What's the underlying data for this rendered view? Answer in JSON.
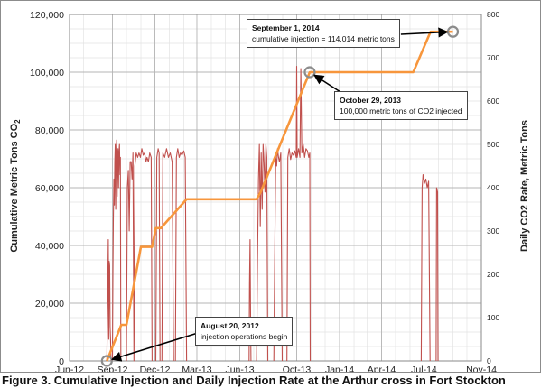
{
  "chart_data": {
    "type": "line",
    "title": "",
    "x_tick_labels": [
      "Jun-12",
      "Sep-12",
      "Dec-12",
      "Mar-13",
      "Jun-13",
      "Oct-13",
      "Jan-14",
      "Apr-14",
      "Jul-14",
      "Nov-14"
    ],
    "x_ticks": [
      "2012-06-01",
      "2012-09-01",
      "2012-12-01",
      "2013-03-01",
      "2013-06-01",
      "2013-10-01",
      "2014-01-01",
      "2014-04-01",
      "2014-07-01",
      "2014-11-01"
    ],
    "xlim": [
      "2012-06-01",
      "2014-11-01"
    ],
    "ylabel_left": "Cumulative Metric Tons CO",
    "ylabel_left_subscript": "2",
    "ylabel_right": "Daily CO2 Rate, Metric Tons",
    "ylim_left": [
      0,
      120000
    ],
    "ylim_right": [
      0,
      800
    ],
    "y_left_ticks": [
      "0",
      "20,000",
      "40,000",
      "60,000",
      "80,000",
      "100,000",
      "120,000"
    ],
    "y_right_ticks": [
      "0",
      "100",
      "200",
      "300",
      "400",
      "500",
      "600",
      "700",
      "800"
    ],
    "grid": true,
    "series": [
      {
        "axis": "left",
        "color": "#f7963c",
        "points": [
          [
            "2012-08-20",
            0
          ],
          [
            "2012-09-20",
            12500
          ],
          [
            "2012-10-01",
            12500
          ],
          [
            "2012-11-01",
            39500
          ],
          [
            "2012-11-25",
            39500
          ],
          [
            "2012-12-03",
            46000
          ],
          [
            "2012-12-14",
            46000
          ],
          [
            "2013-02-07",
            56000
          ],
          [
            "2013-07-07",
            56000
          ],
          [
            "2013-07-16",
            58500
          ],
          [
            "2013-10-29",
            100000
          ],
          [
            "2014-06-08",
            100000
          ],
          [
            "2014-07-15",
            114014
          ],
          [
            "2014-09-01",
            114014
          ]
        ]
      },
      {
        "axis": "right",
        "color": "#c0504d",
        "segments": [
          [
            [
              "2012-08-20",
              0
            ],
            [
              "2012-08-22",
              170
            ],
            [
              "2012-08-23",
              280
            ],
            [
              "2012-08-24",
              50
            ],
            [
              "2012-08-25",
              230
            ],
            [
              "2012-08-26",
              220
            ],
            [
              "2012-08-27",
              80
            ],
            [
              "2012-08-28",
              50
            ],
            [
              "2012-08-29",
              0
            ]
          ],
          [
            [
              "2012-09-01",
              0
            ],
            [
              "2012-09-02",
              200
            ],
            [
              "2012-09-03",
              330
            ],
            [
              "2012-09-04",
              420
            ],
            [
              "2012-09-05",
              360
            ],
            [
              "2012-09-06",
              460
            ],
            [
              "2012-09-07",
              500
            ],
            [
              "2012-09-08",
              350
            ],
            [
              "2012-09-09",
              480
            ],
            [
              "2012-09-10",
              510
            ],
            [
              "2012-09-11",
              380
            ],
            [
              "2012-09-12",
              470
            ],
            [
              "2012-09-13",
              490
            ],
            [
              "2012-09-14",
              400
            ],
            [
              "2012-09-15",
              480
            ],
            [
              "2012-09-16",
              500
            ],
            [
              "2012-09-17",
              430
            ],
            [
              "2012-09-18",
              470
            ],
            [
              "2012-09-19",
              0
            ]
          ],
          [
            [
              "2012-10-01",
              0
            ],
            [
              "2012-10-03",
              400
            ],
            [
              "2012-10-05",
              440
            ],
            [
              "2012-10-07",
              300
            ],
            [
              "2012-10-09",
              460
            ],
            [
              "2012-10-11",
              460
            ],
            [
              "2012-10-13",
              420
            ],
            [
              "2012-10-15",
              480
            ],
            [
              "2012-10-17",
              0
            ],
            [
              "2012-10-19",
              450
            ],
            [
              "2012-10-22",
              480
            ],
            [
              "2012-10-25",
              470
            ],
            [
              "2012-10-28",
              480
            ],
            [
              "2012-10-31",
              470
            ],
            [
              "2012-11-03",
              490
            ],
            [
              "2012-11-06",
              475
            ],
            [
              "2012-11-09",
              480
            ],
            [
              "2012-11-12",
              460
            ],
            [
              "2012-11-14",
              470
            ],
            [
              "2012-11-17",
              460
            ],
            [
              "2012-11-20",
              480
            ],
            [
              "2012-11-23",
              470
            ],
            [
              "2012-11-25",
              0
            ]
          ],
          [
            [
              "2012-12-03",
              0
            ],
            [
              "2012-12-05",
              470
            ],
            [
              "2012-12-08",
              490
            ],
            [
              "2012-12-10",
              480
            ],
            [
              "2012-12-12",
              0
            ]
          ],
          [
            [
              "2012-12-16",
              0
            ],
            [
              "2012-12-18",
              480
            ],
            [
              "2012-12-22",
              470
            ],
            [
              "2012-12-26",
              490
            ],
            [
              "2012-12-30",
              470
            ],
            [
              "2013-01-03",
              480
            ],
            [
              "2013-01-07",
              460
            ],
            [
              "2013-01-10",
              0
            ]
          ],
          [
            [
              "2013-01-14",
              0
            ],
            [
              "2013-01-16",
              470
            ],
            [
              "2013-01-19",
              490
            ],
            [
              "2013-01-22",
              470
            ],
            [
              "2013-01-25",
              480
            ],
            [
              "2013-01-28",
              475
            ],
            [
              "2013-02-01",
              485
            ],
            [
              "2013-02-04",
              470
            ],
            [
              "2013-02-07",
              0
            ]
          ],
          [
            [
              "2013-06-21",
              0
            ],
            [
              "2013-06-22",
              180
            ],
            [
              "2013-06-23",
              280
            ],
            [
              "2013-06-24",
              120
            ],
            [
              "2013-06-25",
              0
            ]
          ],
          [
            [
              "2013-07-07",
              0
            ],
            [
              "2013-07-09",
              230
            ],
            [
              "2013-07-11",
              420
            ],
            [
              "2013-07-13",
              500
            ],
            [
              "2013-07-15",
              310
            ],
            [
              "2013-07-17",
              480
            ],
            [
              "2013-07-19",
              350
            ],
            [
              "2013-07-21",
              500
            ],
            [
              "2013-07-23",
              460
            ],
            [
              "2013-07-25",
              390
            ],
            [
              "2013-07-27",
              500
            ],
            [
              "2013-07-29",
              470
            ],
            [
              "2013-07-31",
              0
            ]
          ],
          [
            [
              "2013-08-13",
              0
            ],
            [
              "2013-08-15",
              240
            ],
            [
              "2013-08-17",
              470
            ],
            [
              "2013-08-19",
              450
            ],
            [
              "2013-08-21",
              490
            ],
            [
              "2013-08-23",
              470
            ],
            [
              "2013-08-25",
              460
            ],
            [
              "2013-08-28",
              480
            ],
            [
              "2013-08-31",
              0
            ]
          ],
          [
            [
              "2013-09-10",
              0
            ],
            [
              "2013-09-12",
              470
            ],
            [
              "2013-09-15",
              490
            ],
            [
              "2013-09-18",
              465
            ],
            [
              "2013-09-21",
              480
            ],
            [
              "2013-09-24",
              475
            ],
            [
              "2013-09-27",
              485
            ],
            [
              "2013-09-30",
              470
            ],
            [
              "2013-10-01",
              680
            ],
            [
              "2013-10-02",
              470
            ],
            [
              "2013-10-05",
              490
            ],
            [
              "2013-10-08",
              470
            ],
            [
              "2013-10-10",
              675
            ],
            [
              "2013-10-12",
              480
            ],
            [
              "2013-10-15",
              500
            ],
            [
              "2013-10-18",
              470
            ],
            [
              "2013-10-21",
              490
            ],
            [
              "2013-10-24",
              485
            ],
            [
              "2013-10-27",
              470
            ],
            [
              "2013-10-29",
              480
            ],
            [
              "2013-10-30",
              0
            ]
          ],
          [
            [
              "2014-06-25",
              0
            ],
            [
              "2014-06-27",
              400
            ],
            [
              "2014-06-29",
              430
            ],
            [
              "2014-07-02",
              410
            ],
            [
              "2014-07-05",
              420
            ],
            [
              "2014-07-08",
              400
            ],
            [
              "2014-07-11",
              415
            ],
            [
              "2014-07-14",
              0
            ]
          ],
          [
            [
              "2014-07-27",
              0
            ],
            [
              "2014-07-28",
              400
            ],
            [
              "2014-07-30",
              390
            ],
            [
              "2014-07-31",
              0
            ]
          ]
        ]
      }
    ],
    "annotations": [
      {
        "title": "August 20, 2012",
        "text": "injection operations begin",
        "date": "2012-08-20",
        "value": 0
      },
      {
        "title": "October 29, 2013",
        "text": "100,000 metric tons of CO2 injected",
        "date": "2013-10-29",
        "value": 100000
      },
      {
        "title": "September 1, 2014",
        "text": "cumulative injection = 114,014 metric tons",
        "date": "2014-09-01",
        "value": 114014
      }
    ]
  },
  "caption": "Figure 3. Cumulative Injection and Daily Injection Rate at the Arthur cross in Fort Stockton"
}
